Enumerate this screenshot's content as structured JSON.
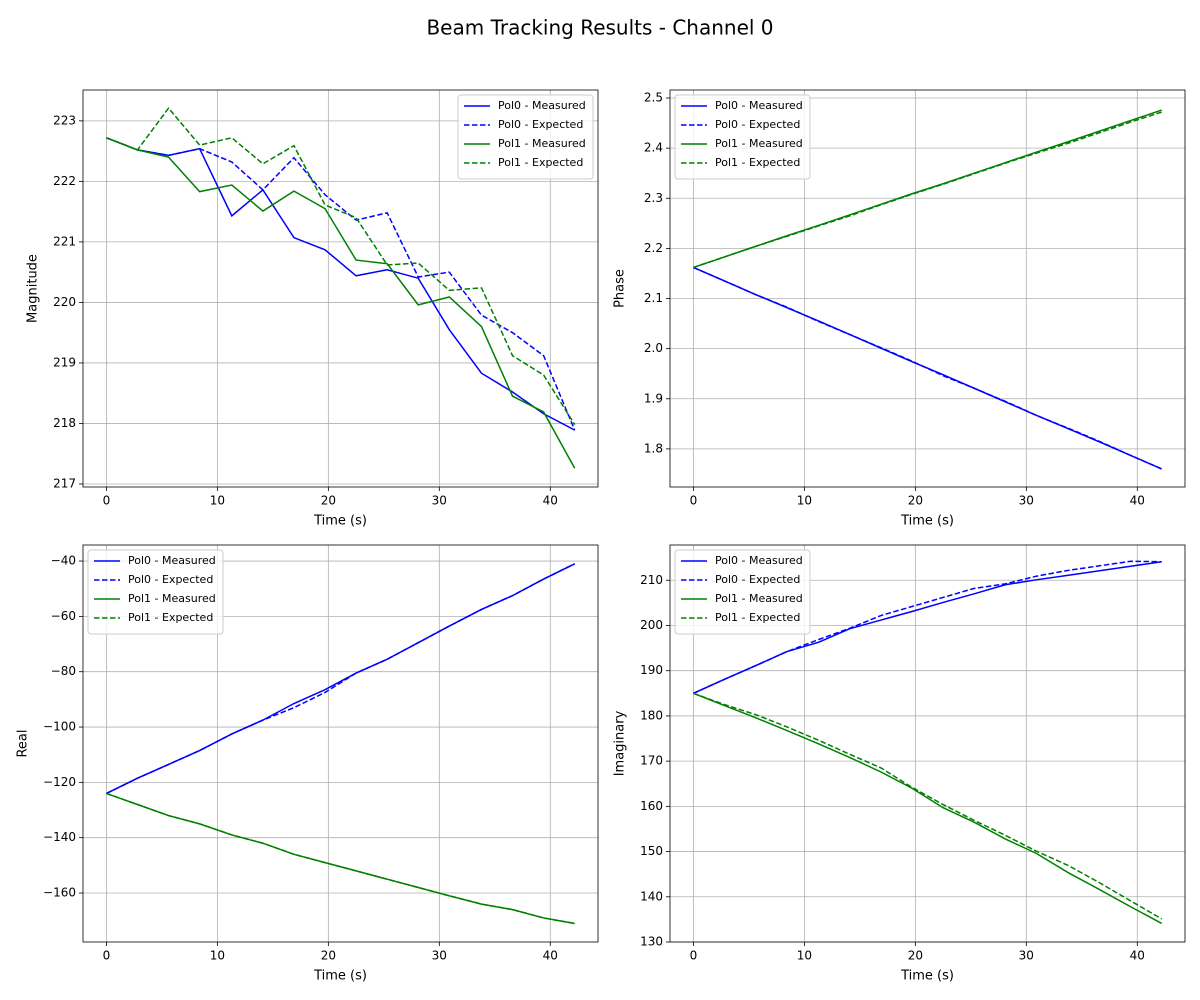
{
  "title": "Beam Tracking Results - Channel 0",
  "chart_data": [
    {
      "type": "line",
      "xlabel": "Time (s)",
      "ylabel": "Magnitude",
      "legend": "upper right",
      "grid": true,
      "x": [
        0,
        2.8,
        5.6,
        8.4,
        11.3,
        14.1,
        16.9,
        19.7,
        22.5,
        25.3,
        28.1,
        30.9,
        33.8,
        36.6,
        39.4,
        42.2
      ],
      "xlim": [
        -2.11,
        44.3
      ],
      "xticks": [
        0,
        10,
        20,
        30,
        40
      ],
      "ylim": [
        216.95,
        223.51
      ],
      "yticks": [
        217,
        218,
        219,
        220,
        221,
        222,
        223
      ],
      "series": [
        {
          "name": "Pol0 - Measured",
          "color": "blue",
          "linestyle": "solid",
          "values": [
            222.72,
            222.52,
            222.43,
            222.54,
            221.43,
            221.86,
            221.07,
            220.87,
            220.44,
            220.54,
            220.4,
            219.55,
            218.83,
            218.52,
            218.16,
            217.89
          ]
        },
        {
          "name": "Pol0 - Expected",
          "color": "blue",
          "linestyle": "dashed",
          "values": [
            222.72,
            222.52,
            222.43,
            222.54,
            222.32,
            221.86,
            222.39,
            221.78,
            221.36,
            221.48,
            220.42,
            220.5,
            219.79,
            219.5,
            219.12,
            217.89
          ]
        },
        {
          "name": "Pol1 - Measured",
          "color": "green",
          "linestyle": "solid",
          "values": [
            222.72,
            222.52,
            222.4,
            221.83,
            221.94,
            221.51,
            221.84,
            221.55,
            220.7,
            220.64,
            219.96,
            220.09,
            219.6,
            218.45,
            218.19,
            217.26
          ]
        },
        {
          "name": "Pol1 - Expected",
          "color": "green",
          "linestyle": "dashed",
          "values": [
            222.72,
            222.52,
            223.21,
            222.6,
            222.72,
            222.29,
            222.59,
            221.61,
            221.4,
            220.62,
            220.65,
            220.2,
            220.24,
            219.12,
            218.8,
            217.98
          ]
        }
      ]
    },
    {
      "type": "line",
      "xlabel": "Time (s)",
      "ylabel": "Phase",
      "legend": "upper left",
      "grid": true,
      "x": [
        0,
        2.8,
        5.6,
        8.4,
        11.3,
        14.1,
        16.9,
        19.7,
        22.5,
        25.3,
        28.1,
        30.9,
        33.8,
        36.6,
        39.4,
        42.2
      ],
      "xlim": [
        -2.11,
        44.3
      ],
      "xticks": [
        0,
        10,
        20,
        30,
        40
      ],
      "ylim": [
        1.724,
        2.516
      ],
      "yticks": [
        1.8,
        1.9,
        {
          "value": 2,
          "label": "2.0"
        },
        2.1,
        2.2,
        2.3,
        2.4,
        2.5
      ],
      "series": [
        {
          "name": "Pol0 - Measured",
          "color": "blue",
          "linestyle": "solid",
          "values": [
            2.162,
            2.135,
            2.108,
            2.082,
            2.055,
            2.028,
            2.001,
            1.974,
            1.948,
            1.921,
            1.894,
            1.867,
            1.84,
            1.814,
            1.787,
            1.76
          ]
        },
        {
          "name": "Pol0 - Expected",
          "color": "blue",
          "linestyle": "dashed",
          "values": [
            2.162,
            2.135,
            2.108,
            2.083,
            2.054,
            2.028,
            2.002,
            1.975,
            1.946,
            1.921,
            1.895,
            1.867,
            1.841,
            1.815,
            1.787,
            1.76
          ]
        },
        {
          "name": "Pol1 - Measured",
          "color": "green",
          "linestyle": "solid",
          "values": [
            2.162,
            2.183,
            2.204,
            2.225,
            2.246,
            2.267,
            2.288,
            2.309,
            2.329,
            2.35,
            2.371,
            2.392,
            2.413,
            2.434,
            2.455,
            2.476
          ]
        },
        {
          "name": "Pol1 - Expected",
          "color": "green",
          "linestyle": "dashed",
          "values": [
            2.162,
            2.183,
            2.204,
            2.224,
            2.245,
            2.265,
            2.287,
            2.308,
            2.328,
            2.349,
            2.37,
            2.39,
            2.41,
            2.431,
            2.452,
            2.472
          ]
        }
      ]
    },
    {
      "type": "line",
      "xlabel": "Time (s)",
      "ylabel": "Real",
      "legend": "upper left",
      "grid": true,
      "x": [
        0,
        2.8,
        5.6,
        8.4,
        11.3,
        14.1,
        16.9,
        19.7,
        22.5,
        25.3,
        28.1,
        30.9,
        33.8,
        36.6,
        39.4,
        42.2
      ],
      "xlim": [
        -2.11,
        44.3
      ],
      "xticks": [
        0,
        10,
        20,
        30,
        40
      ],
      "ylim": [
        -177.7,
        -34.2
      ],
      "yticks": [
        {
          "value": -160,
          "label": "−160"
        },
        {
          "value": -140,
          "label": "−140"
        },
        {
          "value": -120,
          "label": "−120"
        },
        {
          "value": -100,
          "label": "−100"
        },
        {
          "value": -80,
          "label": "−80"
        },
        {
          "value": -60,
          "label": "−60"
        },
        {
          "value": -40,
          "label": "−40"
        }
      ],
      "series": [
        {
          "name": "Pol0 - Measured",
          "color": "blue",
          "linestyle": "solid",
          "values": [
            -124,
            -118.5,
            -113.5,
            -108.5,
            -102.5,
            -97.5,
            -91.5,
            -86.5,
            -80.5,
            -75.5,
            -69.5,
            -63.5,
            -57.5,
            -52.5,
            -46.5,
            -41
          ]
        },
        {
          "name": "Pol0 - Expected",
          "color": "blue",
          "linestyle": "dashed",
          "values": [
            -124,
            -118.5,
            -113.5,
            -108.5,
            -102.5,
            -97.5,
            -93,
            -87.5,
            -80.5,
            -75.5,
            -69.5,
            -63.5,
            -57.5,
            -52.5,
            -46.5,
            -41
          ]
        },
        {
          "name": "Pol1 - Measured",
          "color": "green",
          "linestyle": "solid",
          "values": [
            -124,
            -128,
            -132,
            -135,
            -139,
            -142,
            -146,
            -149,
            -152,
            -155,
            -158,
            -161,
            -164,
            -166,
            -169,
            -171
          ]
        },
        {
          "name": "Pol1 - Expected",
          "color": "green",
          "linestyle": "dashed",
          "values": [
            -124,
            -128,
            -132,
            -135,
            -139,
            -142,
            -146,
            -149,
            -152,
            -155,
            -158,
            -161,
            -164,
            -166,
            -169,
            -171
          ]
        }
      ]
    },
    {
      "type": "line",
      "xlabel": "Time (s)",
      "ylabel": "Imaginary",
      "legend": "upper left",
      "grid": true,
      "x": [
        0,
        2.8,
        5.6,
        8.4,
        11.3,
        14.1,
        16.9,
        19.7,
        22.5,
        25.3,
        28.1,
        30.9,
        33.8,
        36.6,
        39.4,
        42.2
      ],
      "xlim": [
        -2.11,
        44.3
      ],
      "xticks": [
        0,
        10,
        20,
        30,
        40
      ],
      "ylim": [
        130,
        217.8
      ],
      "yticks": [
        130,
        140,
        150,
        160,
        170,
        180,
        190,
        200,
        210
      ],
      "series": [
        {
          "name": "Pol0 - Measured",
          "color": "blue",
          "linestyle": "solid",
          "values": [
            185,
            188.1,
            191.1,
            194.2,
            196.3,
            199.3,
            201.2,
            203.1,
            205.1,
            207,
            209,
            210.1,
            211.1,
            212.1,
            213.1,
            214.1
          ]
        },
        {
          "name": "Pol0 - Expected",
          "color": "blue",
          "linestyle": "dashed",
          "values": [
            185,
            188.1,
            191.1,
            194.2,
            196.9,
            199.4,
            202.2,
            204.2,
            206.2,
            208.2,
            209.2,
            210.9,
            212.2,
            213.2,
            214.2,
            214.1
          ]
        },
        {
          "name": "Pol1 - Measured",
          "color": "green",
          "linestyle": "solid",
          "values": [
            185,
            182.3,
            179.6,
            176.8,
            173.8,
            170.8,
            167.6,
            164,
            159.7,
            156.5,
            152.8,
            149.6,
            145.3,
            141.6,
            137.8,
            134.1
          ]
        },
        {
          "name": "Pol1 - Expected",
          "color": "green",
          "linestyle": "dashed",
          "values": [
            185,
            182.5,
            180.3,
            177.6,
            174.6,
            171.5,
            168.5,
            164.2,
            160.4,
            156.9,
            153.6,
            150.1,
            146.9,
            143.1,
            139.1,
            135.1
          ]
        }
      ]
    }
  ]
}
